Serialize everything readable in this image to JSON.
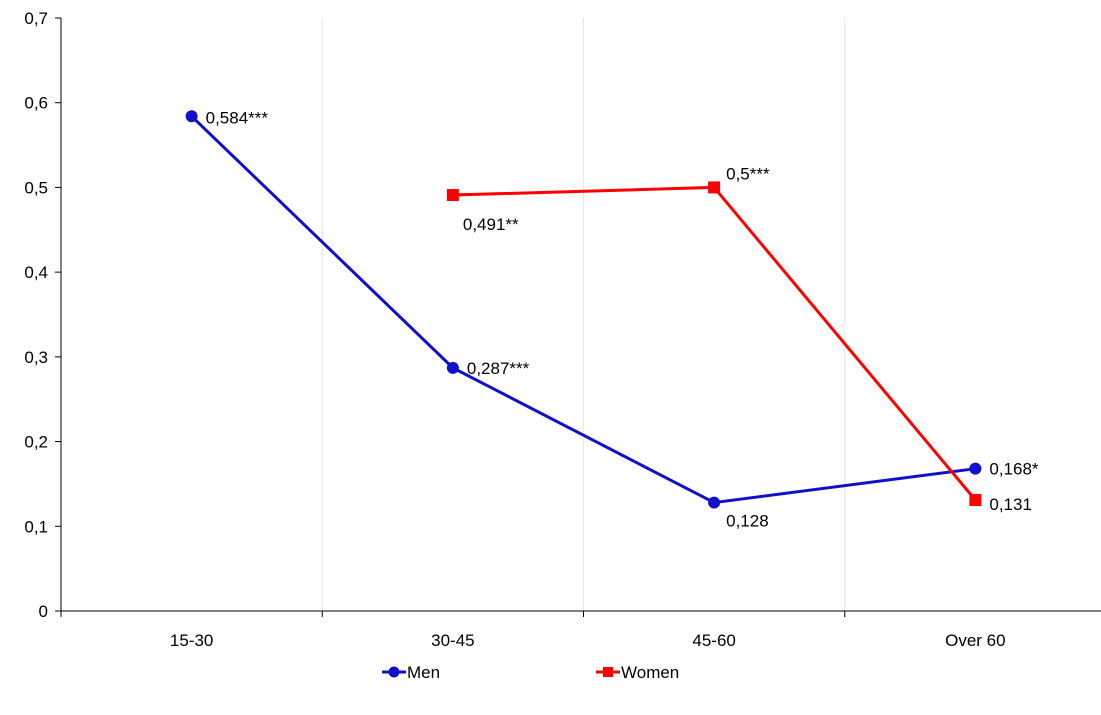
{
  "chart_data": {
    "type": "line",
    "categories": [
      "15-30",
      "30-45",
      "45-60",
      "Over 60"
    ],
    "y_ticks": [
      "0",
      "0,1",
      "0,2",
      "0,3",
      "0,4",
      "0,5",
      "0,6",
      "0,7"
    ],
    "ylim": [
      0,
      0.7
    ],
    "grid": "vertical",
    "legend_position": "bottom",
    "series": [
      {
        "name": "Men",
        "color": "#1010cc",
        "marker": "circle",
        "values": [
          0.584,
          0.287,
          0.128,
          0.168
        ],
        "labels": [
          "0,584***",
          "0,287***",
          "0,128",
          "0,168*"
        ]
      },
      {
        "name": "Women",
        "color": "#ff0000",
        "marker": "square",
        "values": [
          null,
          0.491,
          0.5,
          0.131
        ],
        "labels": [
          null,
          "0,491**",
          "0,5***",
          "0,131"
        ]
      }
    ]
  }
}
